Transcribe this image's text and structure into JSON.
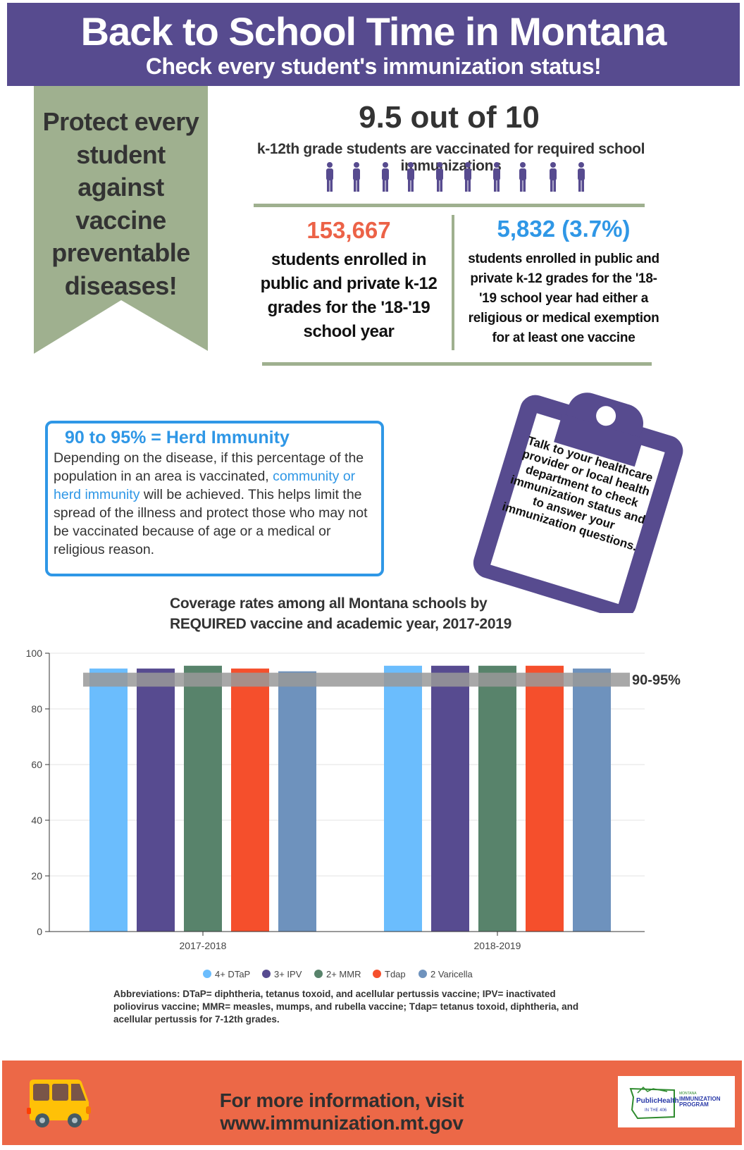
{
  "header": {
    "title": "Back to School Time in Montana",
    "subtitle": "Check every student's immunization status!"
  },
  "ribbon": {
    "lines": [
      "Protect every",
      "student",
      "against",
      "vaccine",
      "preventable",
      "diseases!"
    ]
  },
  "stat_main": {
    "value": "9.5 out of 10",
    "description": "k-12th grade students are vaccinated for required school immunizations",
    "vaccinated_fraction": 0.95
  },
  "stat_enrolled": {
    "value": "153,667",
    "lines": [
      "students enrolled in",
      "public and private k-12",
      "grades for the '18-'19",
      "school year"
    ]
  },
  "stat_exempt": {
    "value": "5,832 (3.7%)",
    "lines": [
      "students enrolled in public and",
      "private k-12 grades for the '18-",
      "'19 school year had either a",
      "religious or medical exemption",
      "for at least one vaccine"
    ]
  },
  "herd": {
    "title": "90 to 95% = Herd Immunity",
    "body_before": "Depending on the  disease, if this percentage of the population in an area is vaccinated, ",
    "body_highlight": "community or herd immunity",
    "body_after": " will be achieved. This helps limit the spread of the illness and protect those who may not be vaccinated because of age or a medical or religious reason."
  },
  "clipboard": {
    "text": "Talk to your healthcare provider or local health department to check immunization status and to answer your immunization questions."
  },
  "chart_data": {
    "type": "bar",
    "title": "Coverage rates among all Montana schools by REQUIRED vaccine and academic year, 2017-2019",
    "title_lines": [
      "Coverage rates among all Montana schools by",
      "REQUIRED vaccine and academic year, 2017-2019"
    ],
    "categories": [
      "2017-2018",
      "2018-2019"
    ],
    "series": [
      {
        "name": "4+ DTaP",
        "color": "#6bbdfd",
        "values": [
          94.5,
          95.5
        ]
      },
      {
        "name": "3+ IPV",
        "color": "#574b90",
        "values": [
          94.5,
          95.5
        ]
      },
      {
        "name": "2+ MMR",
        "color": "#58836b",
        "values": [
          95.5,
          95.5
        ]
      },
      {
        "name": "Tdap",
        "color": "#f54f2c",
        "values": [
          94.5,
          95.5
        ]
      },
      {
        "name": "2 Varicella",
        "color": "#6e92bd",
        "values": [
          93.5,
          94.5
        ]
      }
    ],
    "ylim": [
      0,
      100
    ],
    "yticks": [
      "0",
      "20",
      "40",
      "60",
      "80",
      "100"
    ],
    "grid": true,
    "legend": "bottom",
    "band": {
      "label": "90-95%",
      "color": "#999999"
    }
  },
  "abbreviations": "Abbreviations: DTaP= diphtheria, tetanus toxoid, and acellular pertussis vaccine; IPV= inactivated poliovirus vaccine; MMR= measles, mumps, and rubella vaccine; Tdap= tetanus toxoid, diphtheria, and acellular pertussis for 7-12th grades.",
  "footer": {
    "text": "For more information, visit www.immunization.mt.gov",
    "logo": {
      "left": "PublicHealth",
      "left_sub": "IN THE 406",
      "right": [
        "MONTANA",
        "IMMUNIZATION",
        "PROGRAM"
      ]
    }
  },
  "colors": {
    "purple": "#574b8f",
    "green": "#9fb08f",
    "orange": "#ec6847",
    "blue": "#2f97e6",
    "yellow": "#f5b82e"
  }
}
